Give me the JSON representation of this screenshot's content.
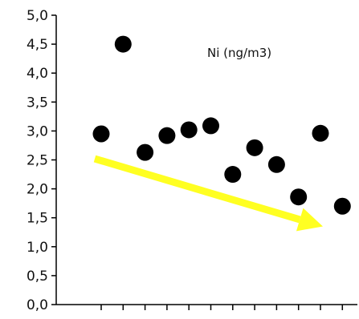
{
  "chart_data": {
    "type": "scatter",
    "title": "",
    "xlabel": "",
    "ylabel": "",
    "annotations": [
      "Ni (ng/m3)"
    ],
    "x_tick_count": 12,
    "ylim": [
      0,
      5
    ],
    "y_ticks": [
      "0,0",
      "0,5",
      "1,0",
      "1,5",
      "2,0",
      "2,5",
      "3,0",
      "3,5",
      "4,0",
      "4,5",
      "5,0"
    ],
    "grid": false,
    "legend": "none",
    "series": [
      {
        "x": [
          1,
          2,
          3,
          4,
          5,
          6,
          7,
          8,
          9,
          10,
          11,
          12
        ],
        "y": [
          2.95,
          4.5,
          2.63,
          2.92,
          3.02,
          3.09,
          2.25,
          2.71,
          2.42,
          1.86,
          2.96,
          1.7
        ]
      }
    ],
    "trend_arrow": {
      "from": [
        1,
        2.52
      ],
      "to": [
        11,
        1.35
      ]
    },
    "colors": {
      "marker": "#000000",
      "trend_arrow": "#ffff22",
      "axis": "#000000"
    }
  }
}
